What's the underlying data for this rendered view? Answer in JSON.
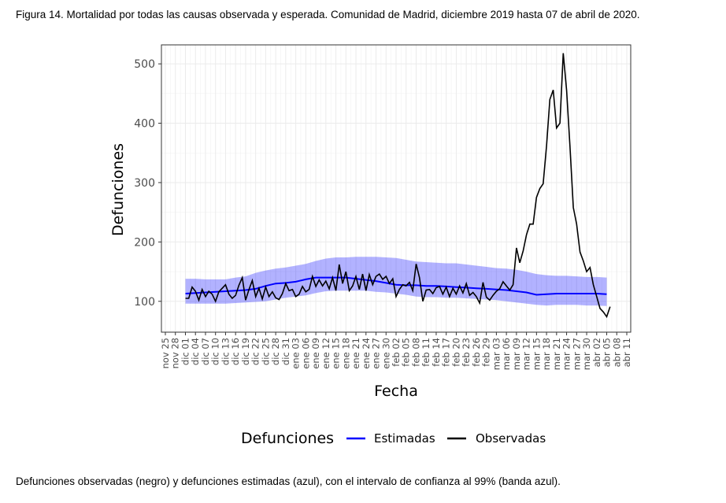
{
  "caption_top": "Figura 14. Mortalidad por todas las causas observada y esperada. Comunidad de Madrid, diciembre 2019 hasta 07 de abril de 2020.",
  "caption_bottom": "Defunciones observadas (negro) y defunciones estimadas (azul), con el intervalo de confianza al 99% (banda azul).",
  "chart_data": {
    "type": "line",
    "xlabel": "Fecha",
    "ylabel": "Defunciones",
    "ylim": [
      48,
      532
    ],
    "yticks": [
      100,
      200,
      300,
      400,
      500
    ],
    "x_start": "2019-11-25",
    "x_end": "2020-04-11",
    "x_tick_labels": [
      "nov 25",
      "nov 28",
      "dic 01",
      "dic 04",
      "dic 07",
      "dic 10",
      "dic 13",
      "dic 16",
      "dic 19",
      "dic 22",
      "dic 25",
      "dic 28",
      "dic 31",
      "ene 03",
      "ene 06",
      "ene 09",
      "ene 12",
      "ene 15",
      "ene 18",
      "ene 21",
      "ene 24",
      "ene 27",
      "ene 30",
      "feb 02",
      "feb 05",
      "feb 08",
      "feb 11",
      "feb 14",
      "feb 17",
      "feb 20",
      "feb 23",
      "feb 26",
      "feb 29",
      "mar 03",
      "mar 06",
      "mar 09",
      "mar 12",
      "mar 15",
      "mar 18",
      "mar 21",
      "mar 24",
      "mar 27",
      "mar 30",
      "abr 02",
      "abr 05",
      "abr 08",
      "abr 11"
    ],
    "grid": true,
    "legend": {
      "title": "Defunciones",
      "position": "bottom",
      "entries": [
        {
          "label": "Estimadas",
          "color": "#0000ff"
        },
        {
          "label": "Observadas",
          "color": "#000000"
        }
      ]
    },
    "series": [
      {
        "name": "Estimadas",
        "color": "#0000ff",
        "points": [
          [
            "2019-12-01",
            113
          ],
          [
            "2019-12-04",
            114
          ],
          [
            "2019-12-07",
            115
          ],
          [
            "2019-12-10",
            116
          ],
          [
            "2019-12-13",
            117
          ],
          [
            "2019-12-16",
            118
          ],
          [
            "2019-12-19",
            119
          ],
          [
            "2019-12-22",
            121
          ],
          [
            "2019-12-25",
            126
          ],
          [
            "2019-12-28",
            130
          ],
          [
            "2019-12-31",
            131
          ],
          [
            "2020-01-03",
            133
          ],
          [
            "2020-01-06",
            137
          ],
          [
            "2020-01-09",
            140
          ],
          [
            "2020-01-12",
            140
          ],
          [
            "2020-01-15",
            140
          ],
          [
            "2020-01-18",
            140
          ],
          [
            "2020-01-21",
            138
          ],
          [
            "2020-01-24",
            136
          ],
          [
            "2020-01-27",
            134
          ],
          [
            "2020-01-30",
            131
          ],
          [
            "2020-02-02",
            128
          ],
          [
            "2020-02-05",
            127
          ],
          [
            "2020-02-08",
            127
          ],
          [
            "2020-02-11",
            126
          ],
          [
            "2020-02-14",
            126
          ],
          [
            "2020-02-17",
            125
          ],
          [
            "2020-02-20",
            124
          ],
          [
            "2020-02-23",
            123
          ],
          [
            "2020-02-26",
            122
          ],
          [
            "2020-02-29",
            121
          ],
          [
            "2020-03-03",
            120
          ],
          [
            "2020-03-06",
            119
          ],
          [
            "2020-03-09",
            117
          ],
          [
            "2020-03-12",
            115
          ],
          [
            "2020-03-15",
            111
          ],
          [
            "2020-03-18",
            112
          ],
          [
            "2020-03-21",
            113
          ],
          [
            "2020-03-24",
            113
          ],
          [
            "2020-03-27",
            113
          ],
          [
            "2020-03-30",
            113
          ],
          [
            "2020-04-02",
            113
          ],
          [
            "2020-04-05",
            112
          ]
        ],
        "ci99_lower": [
          96,
          96,
          96,
          96,
          96,
          97,
          98,
          99,
          100,
          103,
          106,
          108,
          110,
          114,
          117,
          118,
          118,
          118,
          118,
          116,
          115,
          113,
          111,
          108,
          107,
          107,
          106,
          106,
          105,
          104,
          103,
          102,
          100,
          98,
          96,
          94,
          93,
          94,
          94,
          94,
          93,
          93,
          92
        ],
        "ci99_upper": [
          138,
          138,
          137,
          137,
          137,
          140,
          142,
          148,
          152,
          155,
          157,
          160,
          163,
          168,
          172,
          174,
          174,
          175,
          175,
          175,
          174,
          173,
          170,
          167,
          166,
          165,
          164,
          164,
          162,
          160,
          158,
          156,
          155,
          153,
          150,
          146,
          144,
          143,
          143,
          142,
          141,
          141,
          140
        ]
      },
      {
        "name": "Observadas",
        "color": "#000000",
        "points": [
          [
            "2019-12-01",
            105
          ],
          [
            "2019-12-02",
            105
          ],
          [
            "2019-12-03",
            124
          ],
          [
            "2019-12-04",
            117
          ],
          [
            "2019-12-05",
            102
          ],
          [
            "2019-12-06",
            120
          ],
          [
            "2019-12-07",
            108
          ],
          [
            "2019-12-08",
            117
          ],
          [
            "2019-12-09",
            112
          ],
          [
            "2019-12-10",
            100
          ],
          [
            "2019-12-11",
            116
          ],
          [
            "2019-12-12",
            122
          ],
          [
            "2019-12-13",
            128
          ],
          [
            "2019-12-14",
            112
          ],
          [
            "2019-12-15",
            105
          ],
          [
            "2019-12-16",
            110
          ],
          [
            "2019-12-17",
            127
          ],
          [
            "2019-12-18",
            140
          ],
          [
            "2019-12-19",
            102
          ],
          [
            "2019-12-20",
            120
          ],
          [
            "2019-12-21",
            135
          ],
          [
            "2019-12-22",
            108
          ],
          [
            "2019-12-23",
            122
          ],
          [
            "2019-12-24",
            104
          ],
          [
            "2019-12-25",
            124
          ],
          [
            "2019-12-26",
            108
          ],
          [
            "2019-12-27",
            116
          ],
          [
            "2019-12-28",
            106
          ],
          [
            "2019-12-29",
            103
          ],
          [
            "2019-12-30",
            113
          ],
          [
            "2019-12-31",
            130
          ],
          [
            "2020-01-01",
            118
          ],
          [
            "2020-01-02",
            120
          ],
          [
            "2020-01-03",
            108
          ],
          [
            "2020-01-04",
            112
          ],
          [
            "2020-01-05",
            125
          ],
          [
            "2020-01-06",
            116
          ],
          [
            "2020-01-07",
            120
          ],
          [
            "2020-01-08",
            142
          ],
          [
            "2020-01-09",
            125
          ],
          [
            "2020-01-10",
            136
          ],
          [
            "2020-01-11",
            126
          ],
          [
            "2020-01-12",
            134
          ],
          [
            "2020-01-13",
            121
          ],
          [
            "2020-01-14",
            140
          ],
          [
            "2020-01-15",
            118
          ],
          [
            "2020-01-16",
            162
          ],
          [
            "2020-01-17",
            130
          ],
          [
            "2020-01-18",
            150
          ],
          [
            "2020-01-19",
            118
          ],
          [
            "2020-01-20",
            126
          ],
          [
            "2020-01-21",
            142
          ],
          [
            "2020-01-22",
            120
          ],
          [
            "2020-01-23",
            146
          ],
          [
            "2020-01-24",
            118
          ],
          [
            "2020-01-25",
            145
          ],
          [
            "2020-01-26",
            128
          ],
          [
            "2020-01-27",
            142
          ],
          [
            "2020-01-28",
            146
          ],
          [
            "2020-01-29",
            137
          ],
          [
            "2020-01-30",
            142
          ],
          [
            "2020-01-31",
            130
          ],
          [
            "2020-02-01",
            138
          ],
          [
            "2020-02-02",
            108
          ],
          [
            "2020-02-03",
            120
          ],
          [
            "2020-02-04",
            128
          ],
          [
            "2020-02-05",
            126
          ],
          [
            "2020-02-06",
            132
          ],
          [
            "2020-02-07",
            118
          ],
          [
            "2020-02-08",
            163
          ],
          [
            "2020-02-09",
            140
          ],
          [
            "2020-02-10",
            100
          ],
          [
            "2020-02-11",
            119
          ],
          [
            "2020-02-12",
            120
          ],
          [
            "2020-02-13",
            113
          ],
          [
            "2020-02-14",
            123
          ],
          [
            "2020-02-15",
            125
          ],
          [
            "2020-02-16",
            112
          ],
          [
            "2020-02-17",
            124
          ],
          [
            "2020-02-18",
            108
          ],
          [
            "2020-02-19",
            122
          ],
          [
            "2020-02-20",
            112
          ],
          [
            "2020-02-21",
            126
          ],
          [
            "2020-02-22",
            114
          ],
          [
            "2020-02-23",
            130
          ],
          [
            "2020-02-24",
            110
          ],
          [
            "2020-02-25",
            115
          ],
          [
            "2020-02-26",
            108
          ],
          [
            "2020-02-27",
            97
          ],
          [
            "2020-02-28",
            132
          ],
          [
            "2020-02-29",
            107
          ],
          [
            "2020-03-01",
            102
          ],
          [
            "2020-03-02",
            110
          ],
          [
            "2020-03-03",
            117
          ],
          [
            "2020-03-04",
            121
          ],
          [
            "2020-03-05",
            133
          ],
          [
            "2020-03-06",
            126
          ],
          [
            "2020-03-07",
            119
          ],
          [
            "2020-03-08",
            128
          ],
          [
            "2020-03-09",
            190
          ],
          [
            "2020-03-10",
            165
          ],
          [
            "2020-03-11",
            185
          ],
          [
            "2020-03-12",
            212
          ],
          [
            "2020-03-13",
            230
          ],
          [
            "2020-03-14",
            230
          ],
          [
            "2020-03-15",
            275
          ],
          [
            "2020-03-16",
            290
          ],
          [
            "2020-03-17",
            298
          ],
          [
            "2020-03-18",
            362
          ],
          [
            "2020-03-19",
            440
          ],
          [
            "2020-03-20",
            456
          ],
          [
            "2020-03-21",
            392
          ],
          [
            "2020-03-22",
            400
          ],
          [
            "2020-03-23",
            518
          ],
          [
            "2020-03-24",
            455
          ],
          [
            "2020-03-25",
            362
          ],
          [
            "2020-03-26",
            258
          ],
          [
            "2020-03-27",
            230
          ],
          [
            "2020-03-28",
            183
          ],
          [
            "2020-03-29",
            168
          ],
          [
            "2020-03-30",
            150
          ],
          [
            "2020-03-31",
            157
          ],
          [
            "2020-04-01",
            128
          ],
          [
            "2020-04-02",
            108
          ],
          [
            "2020-04-03",
            88
          ],
          [
            "2020-04-04",
            82
          ],
          [
            "2020-04-05",
            74
          ],
          [
            "2020-04-06",
            91
          ]
        ]
      }
    ]
  }
}
